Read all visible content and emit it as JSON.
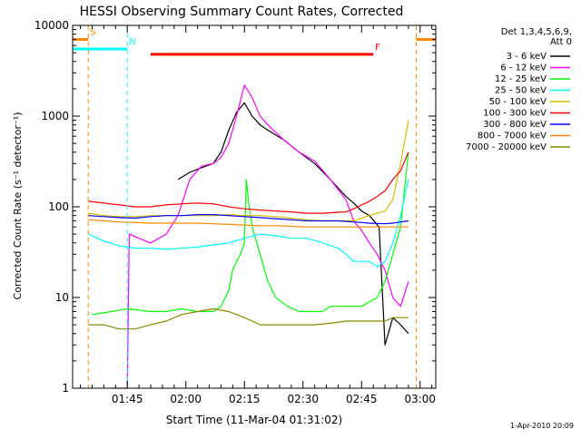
{
  "chart_data": {
    "type": "line",
    "title": "HESSI Observing Summary Count Rates, Corrected",
    "xlabel": "Start Time (11-Mar-04 01:31:02)",
    "ylabel": "Corrected Count Rate (s⁻¹ detector⁻¹)",
    "ylog": true,
    "xlim": [
      0,
      93
    ],
    "ylim": [
      1,
      10000
    ],
    "x_ticks": [
      {
        "value": 14,
        "label": "01:45"
      },
      {
        "value": 29,
        "label": "02:00"
      },
      {
        "value": 44,
        "label": "02:15"
      },
      {
        "value": 59,
        "label": "02:30"
      },
      {
        "value": 74,
        "label": "02:45"
      },
      {
        "value": 89,
        "label": "03:00"
      }
    ],
    "y_ticks": [
      {
        "value": 1,
        "label": "1"
      },
      {
        "value": 10,
        "label": "10"
      },
      {
        "value": 100,
        "label": "100"
      },
      {
        "value": 1000,
        "label": "1000"
      },
      {
        "value": 10000,
        "label": "10000"
      }
    ],
    "legend": {
      "header": [
        "Det 1,3,4,5,6,9,",
        "Att 0"
      ],
      "placement": "right"
    },
    "series": [
      {
        "name": "3 - 6 keV",
        "color": "#000000",
        "x": [
          0.2,
          10,
          14.5,
          20,
          23,
          27,
          30,
          33,
          36,
          38,
          40,
          42,
          44,
          46,
          48,
          50,
          54,
          58,
          62,
          66,
          70,
          72,
          74,
          76,
          78.5,
          80,
          82,
          84,
          86
        ],
        "y": [
          null,
          null,
          null,
          null,
          null,
          200,
          240,
          270,
          300,
          400,
          700,
          1100,
          1400,
          1000,
          800,
          700,
          550,
          400,
          300,
          200,
          130,
          110,
          90,
          80,
          60,
          3,
          6,
          5,
          4
        ]
      },
      {
        "name": "6 - 12 keV",
        "color": "#ff00ff",
        "x": [
          0.2,
          4,
          8,
          10,
          14,
          14.5,
          17,
          20,
          24,
          27,
          30,
          33,
          36,
          38,
          40,
          42,
          44,
          46,
          48,
          50,
          54,
          58,
          62,
          66,
          70,
          72,
          74,
          76,
          78,
          80,
          82,
          84,
          86
        ],
        "y": [
          null,
          null,
          null,
          1,
          1,
          50,
          45,
          40,
          50,
          80,
          200,
          280,
          300,
          350,
          500,
          1000,
          2200,
          1600,
          1000,
          800,
          550,
          400,
          320,
          200,
          120,
          70,
          55,
          40,
          30,
          20,
          10,
          8,
          15
        ]
      },
      {
        "name": "12 - 25 keV",
        "color": "#00ff00",
        "x": [
          0.2,
          5,
          10,
          14,
          20,
          24,
          28,
          32,
          36,
          38,
          40,
          41,
          42,
          43,
          44,
          44.5,
          45,
          46,
          48,
          50,
          52,
          55,
          58,
          60,
          62,
          64,
          66,
          70,
          74,
          78,
          80,
          82,
          84,
          86
        ],
        "y": [
          null,
          6.5,
          7,
          7.5,
          7,
          7,
          7.5,
          7,
          7,
          8,
          12,
          20,
          25,
          30,
          40,
          200,
          120,
          60,
          30,
          15,
          10,
          8,
          7,
          7,
          7,
          7,
          8,
          8,
          8,
          10,
          15,
          30,
          60,
          400
        ]
      },
      {
        "name": "25 - 50 keV",
        "color": "#00ffff",
        "x": [
          0.2,
          4,
          8,
          12,
          16,
          20,
          24,
          28,
          32,
          36,
          40,
          44,
          48,
          52,
          56,
          60,
          64,
          68,
          70,
          72,
          74,
          76,
          78,
          80,
          82,
          84,
          86
        ],
        "y": [
          null,
          50,
          42,
          37,
          35,
          35,
          34,
          35,
          36,
          38,
          40,
          45,
          50,
          48,
          45,
          45,
          40,
          35,
          30,
          25,
          25,
          25,
          22,
          25,
          40,
          80,
          200
        ]
      },
      {
        "name": "50 - 100 keV",
        "color": "#ddbb00",
        "x": [
          0.2,
          4,
          8,
          12,
          16,
          20,
          24,
          28,
          32,
          36,
          40,
          44,
          48,
          52,
          56,
          60,
          64,
          68,
          72,
          76,
          80,
          82,
          84,
          86
        ],
        "y": [
          null,
          85,
          80,
          78,
          78,
          80,
          80,
          80,
          80,
          80,
          82,
          80,
          80,
          78,
          75,
          72,
          70,
          70,
          70,
          80,
          90,
          120,
          300,
          900
        ]
      },
      {
        "name": "100 - 300 keV",
        "color": "#ff0000",
        "x": [
          0.2,
          4,
          8,
          12,
          16,
          20,
          24,
          28,
          32,
          36,
          40,
          44,
          48,
          52,
          56,
          60,
          64,
          68,
          70,
          72,
          74,
          76,
          78,
          80,
          82,
          84,
          86
        ],
        "y": [
          null,
          115,
          110,
          105,
          100,
          100,
          105,
          108,
          110,
          108,
          100,
          95,
          92,
          90,
          88,
          85,
          85,
          87,
          88,
          95,
          105,
          115,
          130,
          150,
          200,
          250,
          400
        ]
      },
      {
        "name": "300 - 800 keV",
        "color": "#0000ff",
        "x": [
          0.2,
          4,
          8,
          12,
          16,
          20,
          24,
          28,
          32,
          36,
          40,
          44,
          48,
          52,
          56,
          60,
          64,
          68,
          72,
          76,
          80,
          82,
          84,
          86
        ],
        "y": [
          null,
          80,
          78,
          76,
          75,
          78,
          80,
          80,
          82,
          82,
          80,
          78,
          76,
          74,
          72,
          70,
          70,
          70,
          68,
          66,
          65,
          66,
          68,
          70
        ]
      },
      {
        "name": "800 - 7000 keV",
        "color": "#ff8800",
        "x": [
          0.2,
          4,
          8,
          12,
          16,
          20,
          24,
          28,
          32,
          36,
          40,
          44,
          48,
          52,
          56,
          60,
          64,
          68,
          72,
          76,
          80,
          82,
          84,
          86
        ],
        "y": [
          null,
          72,
          70,
          68,
          67,
          66,
          66,
          66,
          66,
          65,
          64,
          63,
          62,
          62,
          61,
          60,
          60,
          60,
          60,
          60,
          60,
          60,
          60,
          60
        ]
      },
      {
        "name": "7000 - 20000 keV",
        "color": "#888800",
        "x": [
          0.2,
          4,
          8,
          12,
          16,
          20,
          24,
          28,
          32,
          36,
          40,
          44,
          46,
          48,
          50,
          52,
          55,
          58,
          62,
          66,
          70,
          74,
          78,
          80,
          82,
          84,
          86
        ],
        "y": [
          null,
          5,
          5,
          4.5,
          4.5,
          5,
          5.5,
          6.5,
          7,
          7.5,
          7,
          6,
          5.5,
          5,
          5,
          5,
          5,
          5,
          5,
          5.2,
          5.5,
          5.5,
          5.5,
          5.5,
          6,
          6,
          6
        ]
      }
    ],
    "flags": [
      {
        "label": "S",
        "color": "#ff8800",
        "x_start": 0,
        "x_end": 4,
        "y": 7000,
        "edge_x": [
          4,
          88
        ]
      },
      {
        "label": "N",
        "color": "#00ffff",
        "x_start": 0,
        "x_end": 14,
        "y": 5500,
        "edge_x": [
          14,
          93
        ]
      },
      {
        "label": "F",
        "color": "#ff0000",
        "x_start": 20,
        "x_end": 77,
        "y": 4800
      }
    ],
    "timestamp": "1-Apr-2010 20:09"
  }
}
